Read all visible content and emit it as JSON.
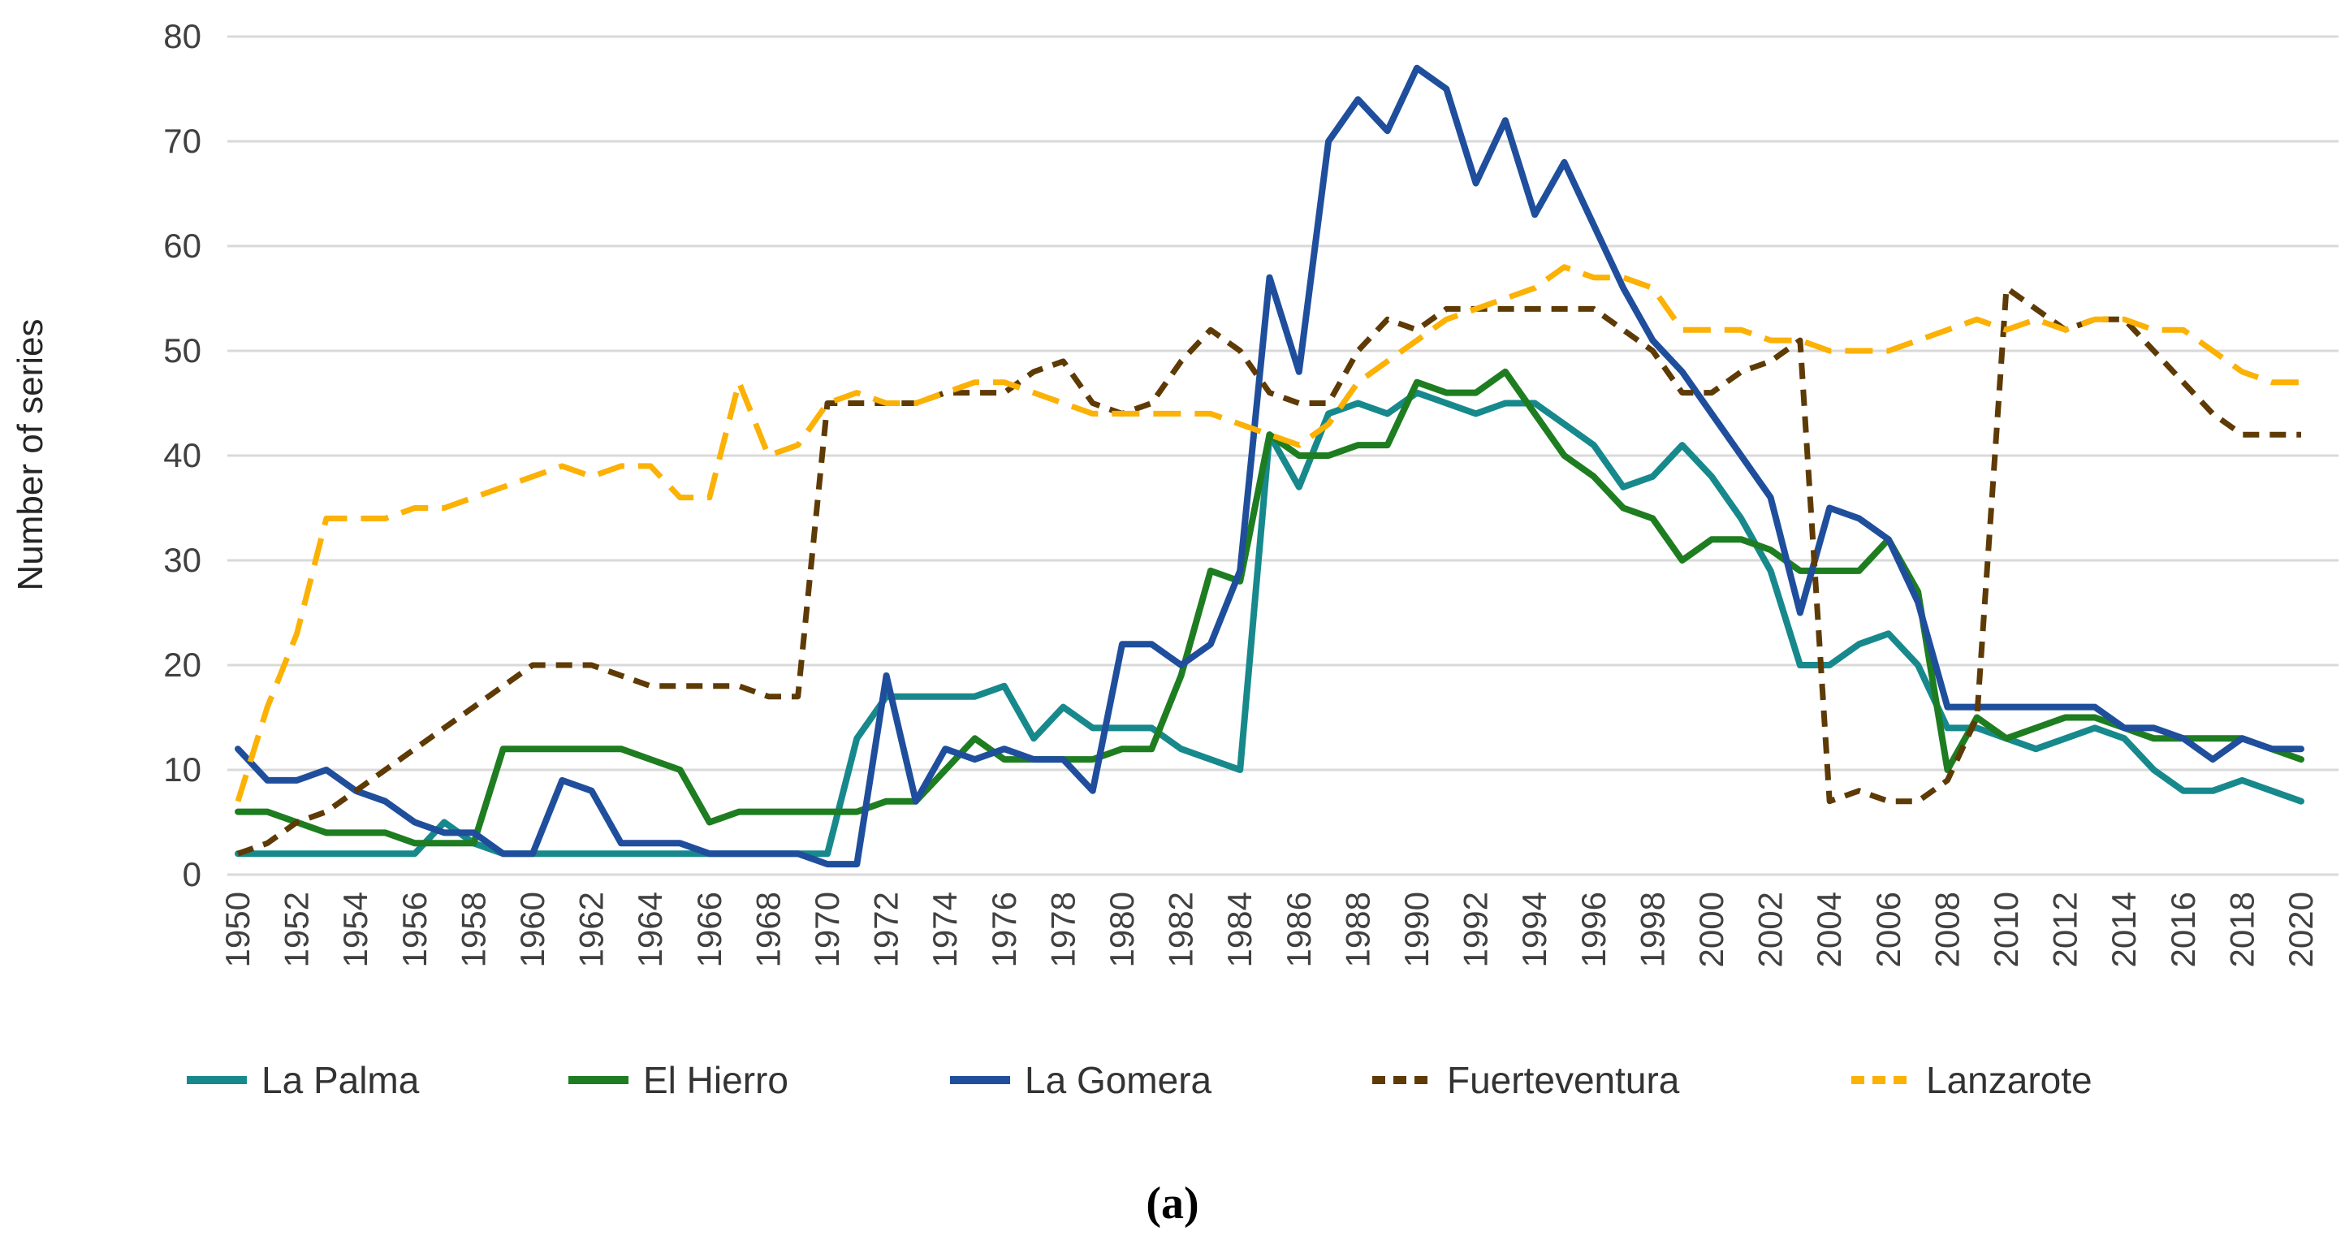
{
  "figure": {
    "caption": "(a)"
  },
  "chart_data": {
    "type": "line",
    "title": "",
    "xlabel": "",
    "ylabel": "Number of series",
    "ylim": [
      0,
      80
    ],
    "xlim": [
      1950,
      2020
    ],
    "y_ticks": [
      0,
      10,
      20,
      30,
      40,
      50,
      60,
      70,
      80
    ],
    "x_tick_step": 2,
    "x_ticks": [
      1950,
      1952,
      1954,
      1956,
      1958,
      1960,
      1962,
      1964,
      1966,
      1968,
      1970,
      1972,
      1974,
      1976,
      1978,
      1980,
      1982,
      1984,
      1986,
      1988,
      1990,
      1992,
      1994,
      1996,
      1998,
      2000,
      2002,
      2004,
      2006,
      2008,
      2010,
      2012,
      2014,
      2016,
      2018,
      2020
    ],
    "grid": "horizontal",
    "legend_position": "bottom",
    "x": [
      1950,
      1951,
      1952,
      1953,
      1954,
      1955,
      1956,
      1957,
      1958,
      1959,
      1960,
      1961,
      1962,
      1963,
      1964,
      1965,
      1966,
      1967,
      1968,
      1969,
      1970,
      1971,
      1972,
      1973,
      1974,
      1975,
      1976,
      1977,
      1978,
      1979,
      1980,
      1981,
      1982,
      1983,
      1984,
      1985,
      1986,
      1987,
      1988,
      1989,
      1990,
      1991,
      1992,
      1993,
      1994,
      1995,
      1996,
      1997,
      1998,
      1999,
      2000,
      2001,
      2002,
      2003,
      2004,
      2005,
      2006,
      2007,
      2008,
      2009,
      2010,
      2011,
      2012,
      2013,
      2014,
      2015,
      2016,
      2017,
      2018,
      2019,
      2020
    ],
    "series": [
      {
        "name": "La Palma",
        "color": "#17898c",
        "dash": "solid",
        "values": [
          2,
          2,
          2,
          2,
          2,
          2,
          2,
          5,
          3,
          2,
          2,
          2,
          2,
          2,
          2,
          2,
          2,
          2,
          2,
          2,
          2,
          13,
          17,
          17,
          17,
          17,
          18,
          13,
          16,
          14,
          14,
          14,
          12,
          11,
          10,
          42,
          37,
          44,
          45,
          44,
          46,
          45,
          44,
          45,
          45,
          43,
          41,
          37,
          38,
          41,
          38,
          34,
          29,
          20,
          20,
          22,
          23,
          20,
          14,
          14,
          13,
          12,
          13,
          14,
          13,
          10,
          8,
          8,
          9,
          8,
          7
        ]
      },
      {
        "name": "El Hierro",
        "color": "#1e7d20",
        "dash": "solid",
        "values": [
          6,
          6,
          5,
          4,
          4,
          4,
          3,
          3,
          3,
          12,
          12,
          12,
          12,
          12,
          11,
          10,
          5,
          6,
          6,
          6,
          6,
          6,
          7,
          7,
          10,
          13,
          11,
          11,
          11,
          11,
          12,
          12,
          19,
          29,
          28,
          42,
          40,
          40,
          41,
          41,
          47,
          46,
          46,
          48,
          44,
          40,
          38,
          35,
          34,
          30,
          32,
          32,
          31,
          29,
          29,
          29,
          32,
          27,
          10,
          15,
          13,
          14,
          15,
          15,
          14,
          13,
          13,
          13,
          13,
          12,
          11
        ]
      },
      {
        "name": "La Gomera",
        "color": "#1f4e9c",
        "dash": "solid",
        "values": [
          12,
          9,
          9,
          10,
          8,
          7,
          5,
          4,
          4,
          2,
          2,
          9,
          8,
          3,
          3,
          3,
          2,
          2,
          2,
          2,
          1,
          1,
          19,
          7,
          12,
          11,
          12,
          11,
          11,
          8,
          22,
          22,
          20,
          22,
          29,
          57,
          48,
          70,
          74,
          71,
          77,
          75,
          66,
          72,
          63,
          68,
          62,
          56,
          51,
          48,
          44,
          40,
          36,
          25,
          35,
          34,
          32,
          26,
          16,
          16,
          16,
          16,
          16,
          16,
          14,
          14,
          13,
          11,
          13,
          12,
          12
        ]
      },
      {
        "name": "Fuerteventura",
        "color": "#5e3a05",
        "dash": "dashed-short",
        "values": [
          2,
          3,
          5,
          6,
          8,
          10,
          12,
          14,
          16,
          18,
          20,
          20,
          20,
          19,
          18,
          18,
          18,
          18,
          17,
          17,
          45,
          45,
          45,
          45,
          46,
          46,
          46,
          48,
          49,
          45,
          44,
          45,
          49,
          52,
          50,
          46,
          45,
          45,
          50,
          53,
          52,
          54,
          54,
          54,
          54,
          54,
          54,
          52,
          50,
          46,
          46,
          48,
          49,
          51,
          7,
          8,
          7,
          7,
          9,
          15,
          56,
          54,
          52,
          53,
          53,
          50,
          47,
          44,
          42,
          42,
          42
        ]
      },
      {
        "name": "Lanzarote",
        "color": "#fcb105",
        "dash": "dashed-long",
        "values": [
          7,
          16,
          23,
          34,
          34,
          34,
          35,
          35,
          36,
          37,
          38,
          39,
          38,
          39,
          39,
          36,
          36,
          47,
          40,
          41,
          45,
          46,
          45,
          45,
          46,
          47,
          47,
          46,
          45,
          44,
          44,
          44,
          44,
          44,
          43,
          42,
          41,
          43,
          47,
          49,
          51,
          53,
          54,
          55,
          56,
          58,
          57,
          57,
          56,
          52,
          52,
          52,
          51,
          51,
          50,
          50,
          50,
          51,
          52,
          53,
          52,
          53,
          52,
          53,
          53,
          52,
          52,
          50,
          48,
          47,
          47
        ]
      }
    ],
    "colors": {
      "gridline": "#d9d9d9",
      "tick_text": "#404040",
      "legend_text": "#333333"
    }
  }
}
